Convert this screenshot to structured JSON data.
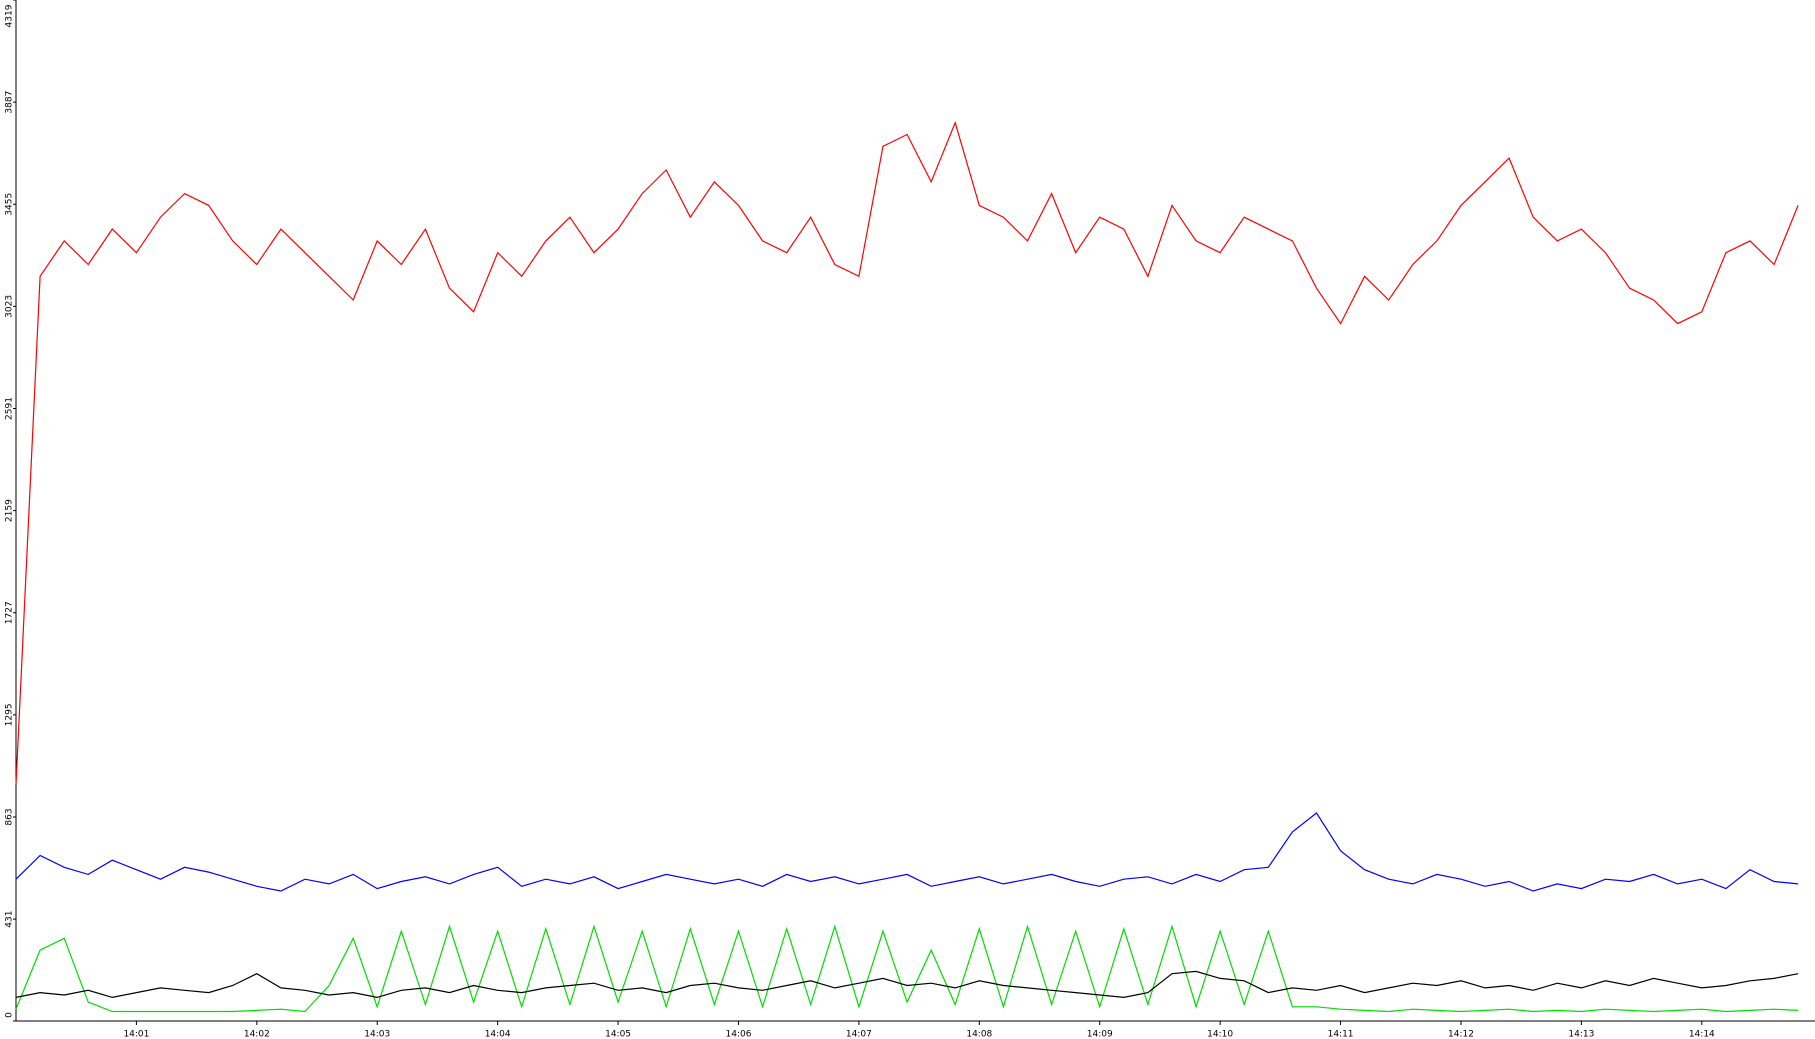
{
  "chart_data": {
    "type": "line",
    "xlim": [
      0,
      14.94
    ],
    "ylim": [
      0,
      4319
    ],
    "xticks": [
      {
        "value": 1,
        "label": "14:01"
      },
      {
        "value": 2,
        "label": "14:02"
      },
      {
        "value": 3,
        "label": "14:03"
      },
      {
        "value": 4,
        "label": "14:04"
      },
      {
        "value": 5,
        "label": "14:05"
      },
      {
        "value": 6,
        "label": "14:06"
      },
      {
        "value": 7,
        "label": "14:07"
      },
      {
        "value": 8,
        "label": "14:08"
      },
      {
        "value": 9,
        "label": "14:09"
      },
      {
        "value": 10,
        "label": "14:10"
      },
      {
        "value": 11,
        "label": "14:11"
      },
      {
        "value": 12,
        "label": "14:12"
      },
      {
        "value": 13,
        "label": "14:13"
      },
      {
        "value": 14,
        "label": "14:14"
      }
    ],
    "yticks": [
      0,
      431,
      863,
      1295,
      1727,
      2159,
      2591,
      3023,
      3455,
      3887,
      4319
    ],
    "x": [
      0,
      0.2,
      0.4,
      0.6,
      0.8,
      1,
      1.2,
      1.4,
      1.6,
      1.8,
      2,
      2.2,
      2.4,
      2.6,
      2.8,
      3,
      3.2,
      3.4,
      3.6,
      3.8,
      4,
      4.2,
      4.4,
      4.6,
      4.8,
      5,
      5.2,
      5.4,
      5.6,
      5.8,
      6,
      6.2,
      6.4,
      6.6,
      6.8,
      7,
      7.2,
      7.4,
      7.6,
      7.8,
      8,
      8.2,
      8.4,
      8.6,
      8.8,
      9,
      9.2,
      9.4,
      9.6,
      9.8,
      10,
      10.2,
      10.4,
      10.6,
      10.8,
      11,
      11.2,
      11.4,
      11.6,
      11.8,
      12,
      12.2,
      12.4,
      12.6,
      12.8,
      13,
      13.2,
      13.4,
      13.6,
      13.8,
      14,
      14.2,
      14.4,
      14.6,
      14.8
    ],
    "series": [
      {
        "color": "#ff0000",
        "values": [
          1000,
          3150,
          3300,
          3200,
          3350,
          3250,
          3400,
          3500,
          3450,
          3300,
          3200,
          3350,
          3250,
          3150,
          3050,
          3300,
          3200,
          3350,
          3100,
          3000,
          3250,
          3150,
          3300,
          3400,
          3250,
          3350,
          3500,
          3600,
          3400,
          3550,
          3450,
          3300,
          3250,
          3400,
          3200,
          3150,
          3700,
          3750,
          3550,
          3800,
          3450,
          3400,
          3300,
          3500,
          3250,
          3400,
          3350,
          3150,
          3450,
          3300,
          3250,
          3400,
          3350,
          3300,
          3100,
          2950,
          3150,
          3050,
          3200,
          3300,
          3450,
          3550,
          3650,
          3400,
          3300,
          3350,
          3250,
          3100,
          3050,
          2950,
          3000,
          3250,
          3300,
          3200,
          3450
        ]
      },
      {
        "color": "#0000ff",
        "values": [
          600,
          700,
          650,
          620,
          680,
          640,
          600,
          650,
          630,
          600,
          570,
          550,
          600,
          580,
          620,
          560,
          590,
          610,
          580,
          620,
          650,
          570,
          600,
          580,
          610,
          560,
          590,
          620,
          600,
          580,
          600,
          570,
          620,
          590,
          610,
          580,
          600,
          620,
          570,
          590,
          610,
          580,
          600,
          620,
          590,
          570,
          600,
          610,
          580,
          620,
          590,
          640,
          650,
          800,
          880,
          720,
          640,
          600,
          580,
          620,
          600,
          570,
          590,
          550,
          580,
          560,
          600,
          590,
          620,
          580,
          600,
          560,
          640,
          590,
          580
        ]
      },
      {
        "color": "#00dd00",
        "values": [
          50,
          300,
          350,
          80,
          40,
          40,
          40,
          40,
          40,
          40,
          45,
          50,
          40,
          150,
          350,
          60,
          380,
          70,
          400,
          80,
          380,
          60,
          390,
          70,
          400,
          80,
          380,
          60,
          390,
          70,
          380,
          60,
          390,
          70,
          400,
          60,
          380,
          80,
          300,
          70,
          390,
          60,
          400,
          70,
          380,
          60,
          390,
          70,
          400,
          60,
          380,
          70,
          380,
          60,
          60,
          50,
          45,
          40,
          50,
          45,
          40,
          45,
          50,
          40,
          45,
          40,
          50,
          45,
          40,
          45,
          50,
          40,
          45,
          50,
          45
        ]
      },
      {
        "color": "#000000",
        "values": [
          100,
          120,
          110,
          130,
          100,
          120,
          140,
          130,
          120,
          150,
          200,
          140,
          130,
          110,
          120,
          100,
          130,
          140,
          120,
          150,
          130,
          120,
          140,
          150,
          160,
          130,
          140,
          120,
          150,
          160,
          140,
          130,
          150,
          170,
          140,
          160,
          180,
          150,
          160,
          140,
          170,
          150,
          140,
          130,
          120,
          110,
          100,
          120,
          200,
          210,
          180,
          170,
          120,
          140,
          130,
          150,
          120,
          140,
          160,
          150,
          170,
          140,
          150,
          130,
          160,
          140,
          170,
          150,
          180,
          160,
          140,
          150,
          170,
          180,
          200
        ]
      }
    ]
  }
}
